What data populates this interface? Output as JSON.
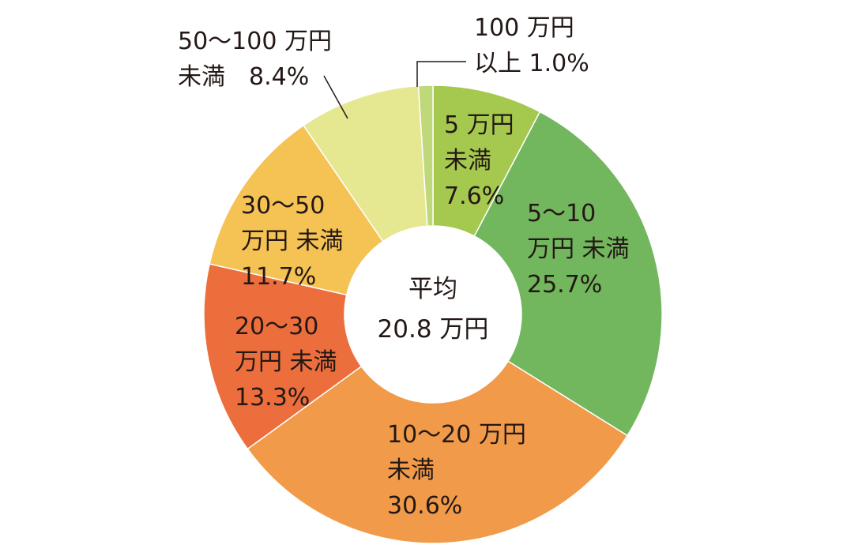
{
  "chart_data": {
    "type": "pie",
    "title": "",
    "center_text": {
      "line1": "平均",
      "line2": "20.8 万円"
    },
    "slices": [
      {
        "lines": [
          "5 万円",
          "未満",
          "7.6%"
        ],
        "value": 7.6,
        "color": "#A5C84E"
      },
      {
        "lines": [
          "5〜10",
          "万円 未満",
          "25.7%"
        ],
        "value": 25.7,
        "color": "#72B65E"
      },
      {
        "lines": [
          "10〜20 万円",
          "未満",
          "30.6%"
        ],
        "value": 30.6,
        "color": "#F19B4A"
      },
      {
        "lines": [
          "20〜30",
          "万円 未満",
          "13.3%"
        ],
        "value": 13.3,
        "color": "#EB6E3C"
      },
      {
        "lines": [
          "30〜50",
          "万円 未満",
          "11.7%"
        ],
        "value": 11.7,
        "color": "#F5C254"
      },
      {
        "lines": [
          "50〜100 万円",
          "未満　8.4%"
        ],
        "value": 8.4,
        "color": "#E6E891"
      },
      {
        "lines": [
          "100 万円",
          "以上 1.0%"
        ],
        "value": 1.0,
        "color": "#BFD97A"
      }
    ],
    "legend": "none",
    "grid": false
  }
}
